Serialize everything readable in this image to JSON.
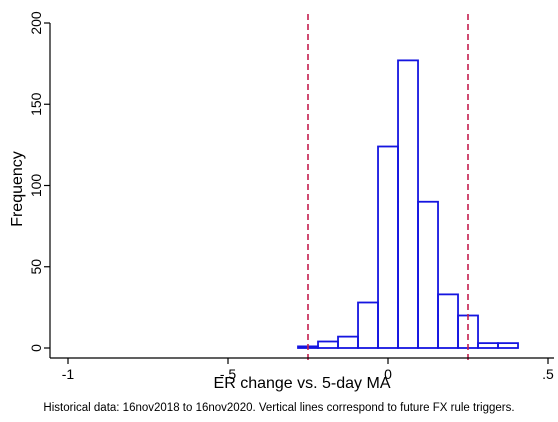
{
  "chart_data": {
    "type": "bar",
    "xlabel": "ER change vs. 5-day MA",
    "ylabel": "Frequency",
    "note": "Historical data: 16nov2018 to 16nov2020. Vertical lines correspond to future FX rule triggers.",
    "xlim": [
      -1.0,
      0.5
    ],
    "ylim": [
      0,
      200
    ],
    "x_ticks": [
      {
        "value": -1.0,
        "label": "-1"
      },
      {
        "value": -0.5,
        "label": "-.5"
      },
      {
        "value": 0.0,
        "label": "0"
      },
      {
        "value": 0.5,
        "label": ".5"
      }
    ],
    "y_ticks": [
      {
        "value": 0,
        "label": "0"
      },
      {
        "value": 50,
        "label": "50"
      },
      {
        "value": 100,
        "label": "100"
      },
      {
        "value": 150,
        "label": "150"
      },
      {
        "value": 200,
        "label": "200"
      }
    ],
    "bin_width": 0.0625,
    "bins": [
      {
        "start": -0.2812,
        "count": 1
      },
      {
        "start": -0.2187,
        "count": 4
      },
      {
        "start": -0.1562,
        "count": 7
      },
      {
        "start": -0.0937,
        "count": 28
      },
      {
        "start": -0.0312,
        "count": 124
      },
      {
        "start": 0.0313,
        "count": 177
      },
      {
        "start": 0.0938,
        "count": 90
      },
      {
        "start": 0.1563,
        "count": 33
      },
      {
        "start": 0.2188,
        "count": 20
      },
      {
        "start": 0.2813,
        "count": 3
      },
      {
        "start": 0.3438,
        "count": 3
      }
    ],
    "vertical_lines": [
      -0.25,
      0.25
    ],
    "colors": {
      "bar_outline": "#1515e0",
      "vline": "#c41e4e",
      "axis": "#000000"
    }
  }
}
